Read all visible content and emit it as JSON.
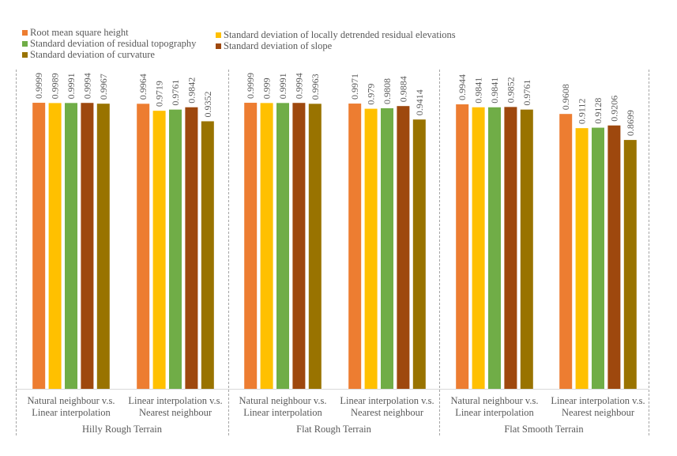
{
  "chart_data": {
    "type": "bar",
    "title": "",
    "xlabel": "",
    "ylabel": "",
    "ylim": [
      0,
      1
    ],
    "grid": false,
    "legend_position": "top-left",
    "series": [
      {
        "name": "Root mean square height",
        "color": "#ED7D31",
        "values": [
          0.9999,
          0.9964,
          0.9999,
          0.9971,
          0.9944,
          0.9608
        ]
      },
      {
        "name": "Standard deviation of locally detrended residual elevations",
        "color": "#FFC000",
        "values": [
          0.9989,
          0.9719,
          0.999,
          0.979,
          0.9841,
          0.9112
        ]
      },
      {
        "name": "Standard deviation of residual topography",
        "color": "#70AD47",
        "values": [
          0.9991,
          0.9761,
          0.9991,
          0.9808,
          0.9841,
          0.9128
        ]
      },
      {
        "name": "Standard deviation of slope",
        "color": "#9E480E",
        "values": [
          0.9994,
          0.9842,
          0.9994,
          0.9884,
          0.9852,
          0.9206
        ]
      },
      {
        "name": "Standard deviation of curvature",
        "color": "#997300",
        "values": [
          0.9967,
          0.9352,
          0.9963,
          0.9414,
          0.9761,
          0.8699
        ]
      }
    ],
    "data_labels": [
      [
        "0.9999",
        "0.9964",
        "0.9999",
        "0.9971",
        "0.9944",
        "0.9608"
      ],
      [
        "0.9989",
        "0.9719",
        "0.999",
        "0.979",
        "0.9841",
        "0.9112"
      ],
      [
        "0.9991",
        "0.9761",
        "0.9991",
        "0.9808",
        "0.9841",
        "0.9128"
      ],
      [
        "0.9994",
        "0.9842",
        "0.9994",
        "0.9884",
        "0.9852",
        "0.9206"
      ],
      [
        "0.9967",
        "0.9352",
        "0.9963",
        "0.9414",
        "0.9761",
        "0.8699"
      ]
    ],
    "categories": [
      {
        "line1": "Natural neighbour v.s.",
        "line2": "Linear interpolation"
      },
      {
        "line1": "Linear interpolation v.s.",
        "line2": "Nearest neighbour"
      },
      {
        "line1": "Natural neighbour v.s.",
        "line2": "Linear interpolation"
      },
      {
        "line1": "Linear interpolation v.s.",
        "line2": "Nearest neighbour"
      },
      {
        "line1": "Natural neighbour v.s.",
        "line2": "Linear interpolation"
      },
      {
        "line1": "Linear interpolation v.s.",
        "line2": "Nearest neighbour"
      }
    ],
    "groups": [
      "Hilly Rough Terrain",
      "Flat Rough Terrain",
      "Flat Smooth Terrain"
    ]
  },
  "legend": {
    "items": [
      {
        "label": "Root mean square height",
        "color": "#ED7D31"
      },
      {
        "label": "Standard deviation of locally detrended residual elevations",
        "color": "#FFC000"
      },
      {
        "label": "Standard deviation of residual topography",
        "color": "#70AD47"
      },
      {
        "label": "Standard deviation of slope",
        "color": "#9E480E"
      },
      {
        "label": "Standard deviation of curvature",
        "color": "#997300"
      }
    ]
  }
}
